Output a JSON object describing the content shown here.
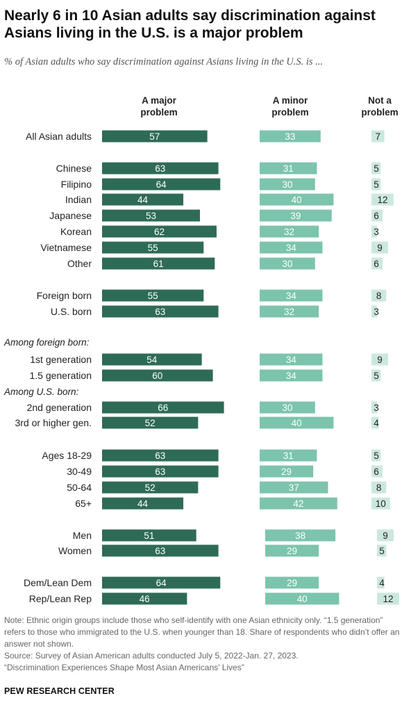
{
  "title": "Nearly 6 in 10 Asian adults say discrimination against Asians living in the U.S. is a major problem",
  "subtitle": "% of Asian adults who say discrimination against Asians living in the U.S. is ...",
  "notes": {
    "note": "Note: Ethnic origin groups include those who self-identify with one Asian ethnicity only. “1.5 generation” refers to those who immigrated to the U.S. when younger than 18. Share of respondents who didn’t offer an answer not shown.",
    "source": "Source: Survey of Asian American adults conducted July 5, 2022-Jan. 27, 2023.",
    "report": "“Discrimination Experiences Shape Most Asian Americans’ Lives”"
  },
  "footer": "PEW RESEARCH CENTER",
  "colors": {
    "major": "#2e6b57",
    "minor": "#7cc4ad",
    "not": "#cce8de",
    "label_light": "#ffffff",
    "label_dark": "#222222"
  },
  "chart_data": {
    "type": "bar",
    "columns": [
      "A major problem",
      "A minor problem",
      "Not a problem"
    ],
    "section_labels": [
      "Among foreign born:",
      "Among U.S. born:"
    ],
    "rows": [
      {
        "label": "All Asian adults",
        "major": 57,
        "minor": 33,
        "not": 7
      },
      {
        "label": "Chinese",
        "major": 63,
        "minor": 31,
        "not": 5
      },
      {
        "label": "Filipino",
        "major": 64,
        "minor": 30,
        "not": 5
      },
      {
        "label": "Indian",
        "major": 44,
        "minor": 40,
        "not": 12
      },
      {
        "label": "Japanese",
        "major": 53,
        "minor": 39,
        "not": 6
      },
      {
        "label": "Korean",
        "major": 62,
        "minor": 32,
        "not": 3
      },
      {
        "label": "Vietnamese",
        "major": 55,
        "minor": 34,
        "not": 9
      },
      {
        "label": "Other",
        "major": 61,
        "minor": 30,
        "not": 6
      },
      {
        "label": "Foreign born",
        "major": 55,
        "minor": 34,
        "not": 8
      },
      {
        "label": "U.S. born",
        "major": 63,
        "minor": 32,
        "not": 3
      },
      {
        "label": "1st generation",
        "major": 54,
        "minor": 34,
        "not": 9
      },
      {
        "label": "1.5 generation",
        "major": 60,
        "minor": 34,
        "not": 5
      },
      {
        "label": "2nd generation",
        "major": 66,
        "minor": 30,
        "not": 3
      },
      {
        "label": "3rd or higher gen.",
        "major": 52,
        "minor": 40,
        "not": 4
      },
      {
        "label": "Ages 18-29",
        "major": 63,
        "minor": 31,
        "not": 5
      },
      {
        "label": "30-49",
        "major": 63,
        "minor": 29,
        "not": 6
      },
      {
        "label": "50-64",
        "major": 52,
        "minor": 37,
        "not": 8
      },
      {
        "label": "65+",
        "major": 44,
        "minor": 42,
        "not": 10
      },
      {
        "label": "Men",
        "major": 51,
        "minor": 38,
        "not": 9
      },
      {
        "label": "Women",
        "major": 63,
        "minor": 29,
        "not": 5
      },
      {
        "label": "Dem/Lean Dem",
        "major": 64,
        "minor": 29,
        "not": 4
      },
      {
        "label": "Rep/Lean Rep",
        "major": 46,
        "minor": 40,
        "not": 12
      }
    ]
  }
}
